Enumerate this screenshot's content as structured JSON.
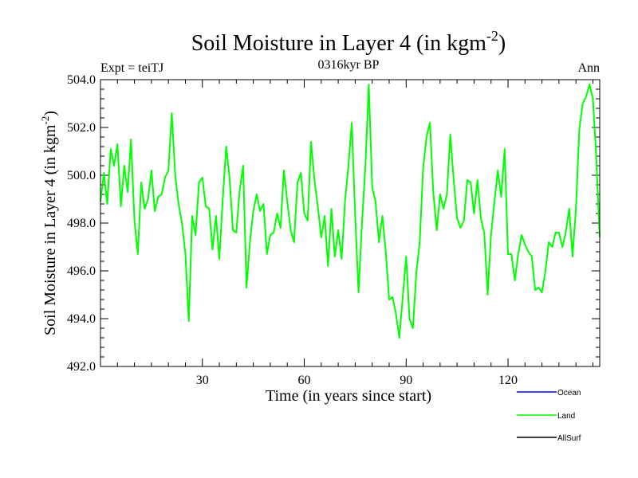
{
  "chart_data": {
    "type": "line",
    "title": "Soil Moisture in Layer 4 (in kgm",
    "title_superscript": "-2",
    "title_close": ")",
    "subtitle_left": "Expt = teiTJ",
    "subtitle_center": "0316kyr BP",
    "subtitle_right": "Ann",
    "xlabel": "Time (in years since start)",
    "ylabel": "Soil Moisture in Layer 4 (in kgm",
    "ylabel_superscript": "-2",
    "ylabel_close": ")",
    "xlim": [
      0,
      147
    ],
    "ylim": [
      492.0,
      504.0
    ],
    "xticks": [
      30,
      60,
      90,
      120
    ],
    "xtick_labels": [
      "30",
      "60",
      "90",
      "120"
    ],
    "yticks": [
      492,
      494,
      496,
      498,
      500,
      502,
      504
    ],
    "ytick_labels": [
      "492.0",
      "494.0",
      "496.0",
      "498.0",
      "500.0",
      "502.0",
      "504.0"
    ],
    "legend": [
      {
        "name": "Ocean",
        "color": "#0000ff"
      },
      {
        "name": "Land",
        "color": "#00ff00"
      },
      {
        "name": "AllSurf",
        "color": "#000000"
      }
    ],
    "series": [
      {
        "name": "Land",
        "color": "#00ff00",
        "x": [
          0,
          1,
          2,
          3,
          4,
          5,
          6,
          7,
          8,
          9,
          10,
          11,
          12,
          13,
          14,
          15,
          16,
          17,
          18,
          19,
          20,
          21,
          22,
          23,
          24,
          25,
          26,
          27,
          28,
          29,
          30,
          31,
          32,
          33,
          34,
          35,
          36,
          37,
          38,
          39,
          40,
          41,
          42,
          43,
          44,
          45,
          46,
          47,
          48,
          49,
          50,
          51,
          52,
          53,
          54,
          55,
          56,
          57,
          58,
          59,
          60,
          61,
          62,
          63,
          64,
          65,
          66,
          67,
          68,
          69,
          70,
          71,
          72,
          73,
          74,
          75,
          76,
          77,
          78,
          79,
          80,
          81,
          82,
          83,
          84,
          85,
          86,
          87,
          88,
          89,
          90,
          91,
          92,
          93,
          94,
          95,
          96,
          97,
          98,
          99,
          100,
          101,
          102,
          103,
          104,
          105,
          106,
          107,
          108,
          109,
          110,
          111,
          112,
          113,
          114,
          115,
          116,
          117,
          118,
          119,
          120,
          121,
          122,
          123,
          124,
          125,
          126,
          127,
          128,
          129,
          130,
          131,
          132,
          133,
          134,
          135,
          136,
          137,
          138,
          139,
          140,
          141,
          142,
          143,
          144,
          145,
          146,
          147
        ],
        "values": [
          498.9,
          500.1,
          498.8,
          501.1,
          500.4,
          501.3,
          498.7,
          500.4,
          499.3,
          501.5,
          498.1,
          496.7,
          499.7,
          498.6,
          499.0,
          500.2,
          498.5,
          499.1,
          499.2,
          499.9,
          500.2,
          502.6,
          500.0,
          498.8,
          498.0,
          496.7,
          493.9,
          498.3,
          497.5,
          499.7,
          499.9,
          498.7,
          498.6,
          496.9,
          498.3,
          496.5,
          499.0,
          501.2,
          499.9,
          497.7,
          497.6,
          499.4,
          500.4,
          495.3,
          497.2,
          498.5,
          499.2,
          498.5,
          498.8,
          496.7,
          497.5,
          497.6,
          498.4,
          497.8,
          500.2,
          498.9,
          497.7,
          497.2,
          499.7,
          500.1,
          498.4,
          498.1,
          501.4,
          499.8,
          498.7,
          497.4,
          498.3,
          496.2,
          498.6,
          496.6,
          497.7,
          496.5,
          498.9,
          500.4,
          502.2,
          498.3,
          495.1,
          498.0,
          500.4,
          503.8,
          499.5,
          498.9,
          497.2,
          498.3,
          496.8,
          494.8,
          494.9,
          494.2,
          493.2,
          494.9,
          496.6,
          494.0,
          493.6,
          495.9,
          497.2,
          500.3,
          501.6,
          502.2,
          499.3,
          497.7,
          499.2,
          498.6,
          499.2,
          501.7,
          499.8,
          498.2,
          497.8,
          498.1,
          499.8,
          499.7,
          498.4,
          499.8,
          498.2,
          497.6,
          495.0,
          497.5,
          498.9,
          500.2,
          499.1,
          501.1,
          496.7,
          496.7,
          495.6,
          496.7,
          497.5,
          497.1,
          496.8,
          496.6,
          495.2,
          495.3,
          495.1,
          496.0,
          497.2,
          497.0,
          497.6,
          497.6,
          497.0,
          497.6,
          498.6,
          496.6,
          498.6,
          501.9,
          503.0,
          503.3,
          503.8,
          503.2,
          500.7,
          497.4
        ]
      }
    ]
  }
}
